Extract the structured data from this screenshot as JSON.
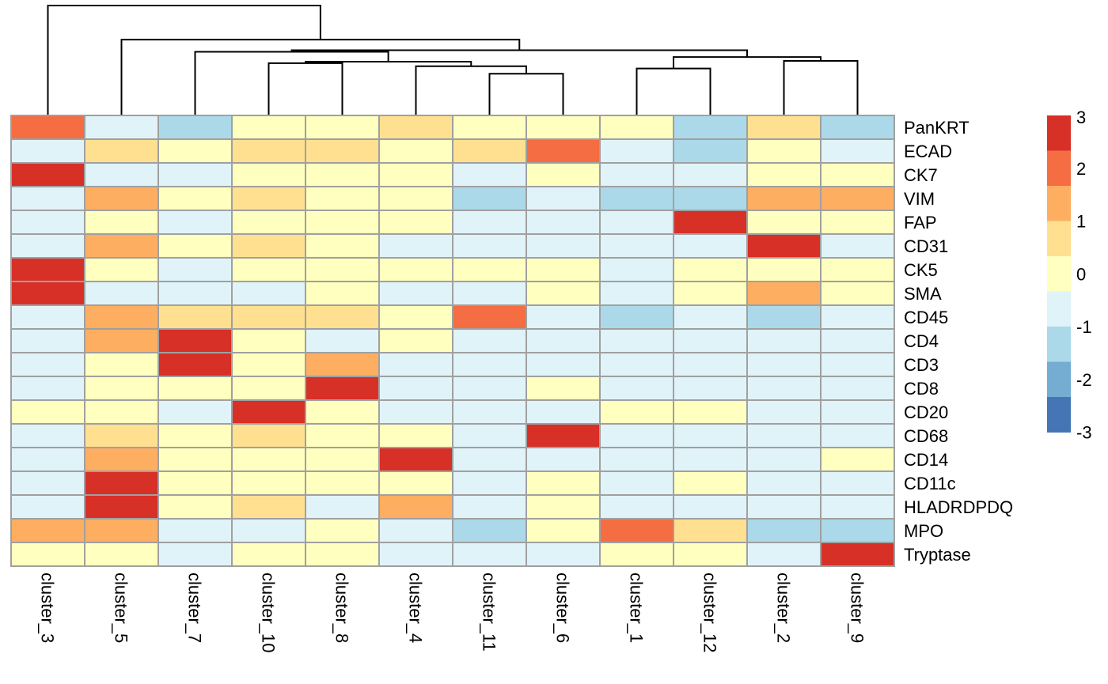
{
  "chart_data": {
    "type": "heatmap",
    "title": "",
    "columns": [
      "cluster_3",
      "cluster_5",
      "cluster_7",
      "cluster_10",
      "cluster_8",
      "cluster_4",
      "cluster_11",
      "cluster_6",
      "cluster_1",
      "cluster_12",
      "cluster_2",
      "cluster_9"
    ],
    "rows": [
      "PanKRT",
      "ECAD",
      "CK7",
      "VIM",
      "FAP",
      "CD31",
      "CK5",
      "SMA",
      "CD45",
      "CD4",
      "CD3",
      "CD8",
      "CD20",
      "CD68",
      "CD14",
      "CD11c",
      "HLADRDPDQ",
      "MPO",
      "Tryptase"
    ],
    "values": [
      [
        2,
        -0.5,
        -1.2,
        0.2,
        0.2,
        0.8,
        0.2,
        0.2,
        0.2,
        -1.2,
        0.8,
        -1.2
      ],
      [
        -0.5,
        0.8,
        0.2,
        0.8,
        0.8,
        0.2,
        0.8,
        2.2,
        -0.5,
        -1.8,
        0.2,
        -0.5
      ],
      [
        3,
        -0.5,
        -0.5,
        0.2,
        0.2,
        0.2,
        -0.5,
        0.2,
        -0.5,
        -0.5,
        0.2,
        0.2
      ],
      [
        -0.5,
        1.5,
        0.2,
        0.8,
        0.2,
        0.2,
        -1.2,
        -0.5,
        -1.2,
        -1.2,
        1.5,
        1.5
      ],
      [
        -0.5,
        0.2,
        -0.5,
        0.2,
        0.2,
        0.2,
        -0.5,
        -0.5,
        -0.5,
        3,
        0.2,
        0.2
      ],
      [
        -0.5,
        1.5,
        0.2,
        0.8,
        0.2,
        -0.5,
        -0.5,
        -0.5,
        -0.5,
        -0.5,
        3,
        -0.5
      ],
      [
        3,
        0.2,
        -0.5,
        0.2,
        0.2,
        0.2,
        0.2,
        0.2,
        -0.5,
        0.2,
        0.2,
        0.2
      ],
      [
        3,
        -0.5,
        -0.5,
        -0.5,
        0.2,
        -0.5,
        -0.5,
        0.2,
        -0.5,
        0.2,
        1.5,
        0.2
      ],
      [
        -0.5,
        1.5,
        0.8,
        0.8,
        0.8,
        0.2,
        2.2,
        -0.5,
        -1.2,
        -0.5,
        -1.2,
        -0.5
      ],
      [
        -0.5,
        1.5,
        3,
        0.2,
        -0.5,
        0.2,
        -0.5,
        -0.5,
        -0.5,
        -0.5,
        -0.5,
        -0.5
      ],
      [
        -0.5,
        0.2,
        3,
        0.2,
        1.5,
        -0.5,
        -0.5,
        -0.5,
        -0.5,
        -0.5,
        -0.5,
        -0.5
      ],
      [
        -0.5,
        0.2,
        0.2,
        0.2,
        3,
        -0.5,
        -0.5,
        0.2,
        -0.5,
        -0.5,
        -0.5,
        -0.5
      ],
      [
        0.2,
        0.2,
        -0.5,
        3,
        0.2,
        -0.5,
        -0.5,
        -0.5,
        0.2,
        0.2,
        -0.5,
        -0.5
      ],
      [
        -0.5,
        0.8,
        0.2,
        0.8,
        0.2,
        0.2,
        -0.5,
        3,
        -0.5,
        -0.5,
        -0.5,
        -0.5
      ],
      [
        -0.5,
        1.5,
        0.2,
        0.2,
        0.2,
        3,
        -0.5,
        -0.5,
        -0.5,
        -0.5,
        -0.5,
        0.2
      ],
      [
        -0.5,
        3,
        0.2,
        0.2,
        0.2,
        0.2,
        -0.5,
        0.2,
        -0.5,
        0.2,
        -0.5,
        -0.5
      ],
      [
        -0.5,
        3,
        0.2,
        0.8,
        -0.5,
        1.5,
        -0.5,
        0.2,
        -0.5,
        -0.5,
        -0.5,
        -0.5
      ],
      [
        1.5,
        1.5,
        -0.5,
        -0.5,
        0.2,
        -0.5,
        -1.2,
        0.2,
        2.2,
        0.8,
        -1.2,
        -1.2
      ],
      [
        0.2,
        0.2,
        -0.5,
        0.2,
        0.2,
        -0.5,
        -0.5,
        -0.5,
        0.2,
        0.2,
        -0.5,
        3
      ]
    ],
    "color_scale": {
      "breaks": [
        -3,
        -2.5,
        -1.5,
        -0.75,
        0,
        0.75,
        1.5,
        2.5,
        3
      ],
      "colors": [
        "#4575b4",
        "#74add1",
        "#abd9e9",
        "#e0f3f8",
        "#ffffbf",
        "#fee090",
        "#fdae61",
        "#f46d43",
        "#d73027"
      ]
    },
    "legend": {
      "ticks": [
        "3",
        "2",
        "1",
        "0",
        "-1",
        "-2",
        "-3"
      ],
      "placement": "right",
      "swatches": [
        "#d73027",
        "#f46d43",
        "#fdae61",
        "#fee090",
        "#ffffbf",
        "#e0f3f8",
        "#abd9e9",
        "#74add1",
        "#4575b4"
      ]
    },
    "dendrogram": {
      "leaf_order": [
        "cluster_3",
        "cluster_5",
        "cluster_7",
        "cluster_10",
        "cluster_8",
        "cluster_4",
        "cluster_11",
        "cluster_6",
        "cluster_1",
        "cluster_12",
        "cluster_2",
        "cluster_9"
      ],
      "merges": [
        [
          [
            6,
            7
          ],
          0.55
        ],
        [
          [
            5,
            12
          ],
          0.65
        ],
        [
          [
            3,
            4
          ],
          0.69
        ],
        [
          [
            14,
            13
          ],
          0.71
        ],
        [
          [
            8,
            9
          ],
          0.62
        ],
        [
          [
            10,
            11
          ],
          0.72
        ],
        [
          [
            16,
            17
          ],
          0.77
        ],
        [
          [
            2,
            15
          ],
          0.84
        ],
        [
          [
            19,
            18
          ],
          0.86
        ],
        [
          [
            1,
            20
          ],
          1.0
        ],
        [
          [
            0,
            21
          ],
          1.45
        ]
      ],
      "grid": false
    }
  }
}
